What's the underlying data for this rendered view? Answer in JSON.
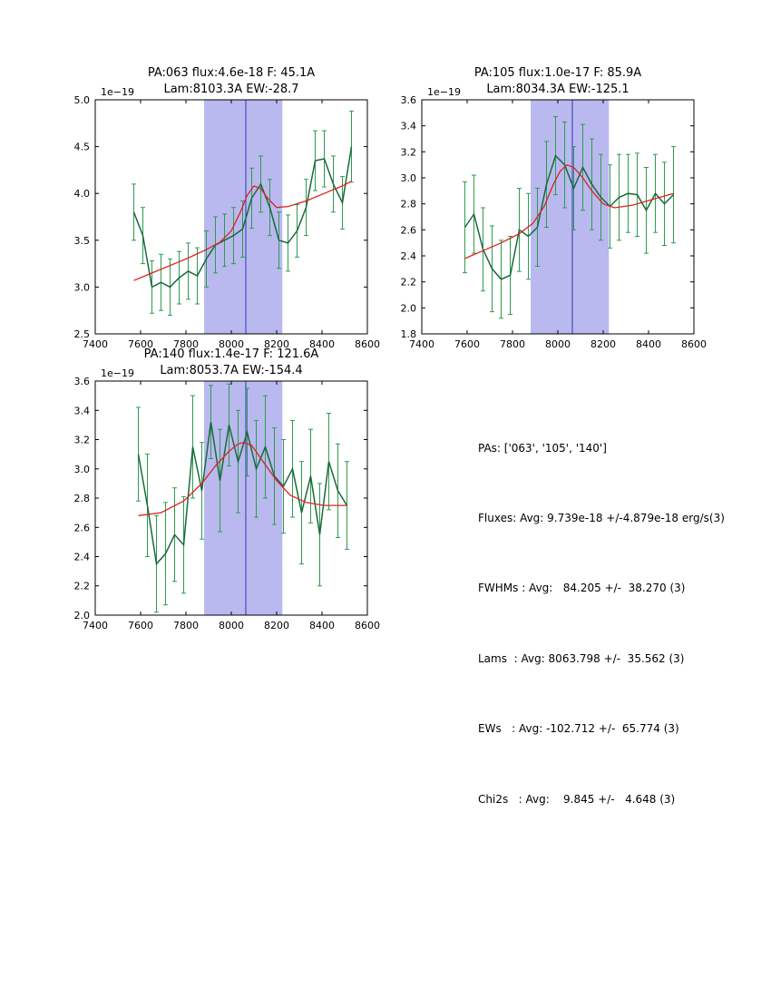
{
  "style": {
    "span_fill": "#b9b9ef",
    "vline_color": "#3333bb",
    "data_color": "#186a3b",
    "err_color": "#2e9b4e",
    "fit_color": "#dd2222",
    "axis_color": "#000000"
  },
  "summary": {
    "lines": [
      "PAs: ['063', '105', '140']",
      "Fluxes: Avg: 9.739e-18 +/-4.879e-18 erg/s(3)",
      "FWHMs : Avg:   84.205 +/-  38.270 (3)",
      "Lams  : Avg: 8063.798 +/-  35.562 (3)",
      "EWs   : Avg: -102.712 +/-  65.774 (3)",
      "Chi2s   : Avg:    9.845 +/-   4.648 (3)"
    ]
  },
  "chart_data": [
    {
      "type": "line",
      "title1": "PA:063 flux:4.6e-18 F: 45.1A",
      "title2": "Lam:8103.3A EW:-28.7",
      "offset": "1e−19",
      "xlim": [
        7400,
        8600
      ],
      "ylim": [
        2.5,
        5.0
      ],
      "xticks": [
        7400,
        7600,
        7800,
        8000,
        8200,
        8400,
        8600
      ],
      "xlabels": [
        "7400",
        "7600",
        "7800",
        "8000",
        "8200",
        "8400",
        "8600"
      ],
      "yticks": [
        2.5,
        3.0,
        3.5,
        4.0,
        4.5,
        5.0
      ],
      "ylabels": [
        "2.5",
        "3.0",
        "3.5",
        "4.0",
        "4.5",
        "5.0"
      ],
      "span": [
        7880,
        8225
      ],
      "vline": 8063.8,
      "x": [
        7570,
        7610,
        7650,
        7690,
        7730,
        7770,
        7810,
        7850,
        7890,
        7930,
        7970,
        8010,
        8050,
        8090,
        8130,
        8170,
        8210,
        8250,
        8290,
        8330,
        8370,
        8410,
        8450,
        8490,
        8530
      ],
      "y": [
        3.8,
        3.55,
        3.0,
        3.05,
        3.0,
        3.1,
        3.17,
        3.12,
        3.3,
        3.45,
        3.5,
        3.55,
        3.62,
        3.95,
        4.1,
        3.85,
        3.5,
        3.47,
        3.6,
        3.85,
        4.35,
        4.37,
        4.1,
        3.9,
        4.5
      ],
      "yerr": [
        0.3,
        0.3,
        0.28,
        0.3,
        0.3,
        0.28,
        0.3,
        0.3,
        0.3,
        0.3,
        0.28,
        0.3,
        0.3,
        0.32,
        0.3,
        0.3,
        0.3,
        0.3,
        0.28,
        0.3,
        0.32,
        0.3,
        0.3,
        0.28,
        0.38
      ],
      "fit_x": [
        7570,
        7650,
        7730,
        7810,
        7890,
        7950,
        8000,
        8040,
        8070,
        8100,
        8130,
        8160,
        8200,
        8250,
        8330,
        8410,
        8490,
        8530
      ],
      "fit_y": [
        3.07,
        3.15,
        3.23,
        3.31,
        3.4,
        3.48,
        3.6,
        3.8,
        3.98,
        4.08,
        4.05,
        3.95,
        3.85,
        3.86,
        3.92,
        4.0,
        4.08,
        4.13
      ]
    },
    {
      "type": "line",
      "title1": "PA:105 flux:1.0e-17 F: 85.9A",
      "title2": "Lam:8034.3A EW:-125.1",
      "offset": "1e−19",
      "xlim": [
        7400,
        8600
      ],
      "ylim": [
        1.8,
        3.6
      ],
      "xticks": [
        7400,
        7600,
        7800,
        8000,
        8200,
        8400,
        8600
      ],
      "xlabels": [
        "7400",
        "7600",
        "7800",
        "8000",
        "8200",
        "8400",
        "8600"
      ],
      "yticks": [
        1.8,
        2.0,
        2.2,
        2.4,
        2.6,
        2.8,
        3.0,
        3.2,
        3.4,
        3.6
      ],
      "ylabels": [
        "1.8",
        "2.0",
        "2.2",
        "2.4",
        "2.6",
        "2.8",
        "3.0",
        "3.2",
        "3.4",
        "3.6"
      ],
      "span": [
        7880,
        8225
      ],
      "vline": 8063.8,
      "x": [
        7590,
        7630,
        7670,
        7710,
        7750,
        7790,
        7830,
        7870,
        7910,
        7950,
        7990,
        8030,
        8070,
        8110,
        8150,
        8190,
        8230,
        8270,
        8310,
        8350,
        8390,
        8430,
        8470,
        8510
      ],
      "y": [
        2.62,
        2.72,
        2.45,
        2.3,
        2.22,
        2.25,
        2.6,
        2.55,
        2.62,
        2.95,
        3.17,
        3.1,
        2.92,
        3.08,
        2.95,
        2.85,
        2.78,
        2.85,
        2.88,
        2.87,
        2.75,
        2.88,
        2.8,
        2.87
      ],
      "yerr": [
        0.35,
        0.3,
        0.32,
        0.33,
        0.3,
        0.3,
        0.32,
        0.33,
        0.3,
        0.33,
        0.3,
        0.33,
        0.32,
        0.33,
        0.35,
        0.33,
        0.32,
        0.33,
        0.3,
        0.32,
        0.33,
        0.3,
        0.32,
        0.37
      ],
      "fit_x": [
        7590,
        7670,
        7750,
        7830,
        7890,
        7940,
        7980,
        8010,
        8040,
        8070,
        8110,
        8150,
        8200,
        8250,
        8330,
        8410,
        8510
      ],
      "fit_y": [
        2.38,
        2.44,
        2.5,
        2.57,
        2.65,
        2.78,
        2.95,
        3.05,
        3.1,
        3.08,
        3.0,
        2.9,
        2.8,
        2.77,
        2.79,
        2.83,
        2.88
      ]
    },
    {
      "type": "line",
      "title1": "PA:140 flux:1.4e-17 F: 121.6A",
      "title2": "Lam:8053.7A EW:-154.4",
      "offset": "1e−19",
      "xlim": [
        7400,
        8600
      ],
      "ylim": [
        2.0,
        3.6
      ],
      "xticks": [
        7400,
        7600,
        7800,
        8000,
        8200,
        8400,
        8600
      ],
      "xlabels": [
        "7400",
        "7600",
        "7800",
        "8000",
        "8200",
        "8400",
        "8600"
      ],
      "yticks": [
        2.0,
        2.2,
        2.4,
        2.6,
        2.8,
        3.0,
        3.2,
        3.4,
        3.6
      ],
      "ylabels": [
        "2.0",
        "2.2",
        "2.4",
        "2.6",
        "2.8",
        "3.0",
        "3.2",
        "3.4",
        "3.6"
      ],
      "span": [
        7880,
        8225
      ],
      "vline": 8063.8,
      "x": [
        7590,
        7630,
        7670,
        7710,
        7750,
        7790,
        7830,
        7870,
        7910,
        7950,
        7990,
        8030,
        8070,
        8110,
        8150,
        8190,
        8230,
        8270,
        8310,
        8350,
        8390,
        8430,
        8470,
        8510
      ],
      "y": [
        3.1,
        2.75,
        2.35,
        2.42,
        2.55,
        2.48,
        3.15,
        2.85,
        3.32,
        2.92,
        3.3,
        3.05,
        3.25,
        3.0,
        3.15,
        2.95,
        2.88,
        3.0,
        2.7,
        2.95,
        2.55,
        3.05,
        2.85,
        2.75
      ],
      "yerr": [
        0.32,
        0.35,
        0.33,
        0.35,
        0.32,
        0.33,
        0.35,
        0.33,
        0.25,
        0.35,
        0.28,
        0.35,
        0.3,
        0.33,
        0.35,
        0.33,
        0.32,
        0.33,
        0.35,
        0.32,
        0.35,
        0.33,
        0.32,
        0.3
      ],
      "fit_x": [
        7590,
        7690,
        7790,
        7870,
        7930,
        7990,
        8030,
        8054,
        8090,
        8140,
        8200,
        8260,
        8330,
        8410,
        8510
      ],
      "fit_y": [
        2.68,
        2.7,
        2.78,
        2.9,
        3.02,
        3.12,
        3.17,
        3.18,
        3.16,
        3.05,
        2.92,
        2.82,
        2.77,
        2.75,
        2.75
      ]
    }
  ]
}
